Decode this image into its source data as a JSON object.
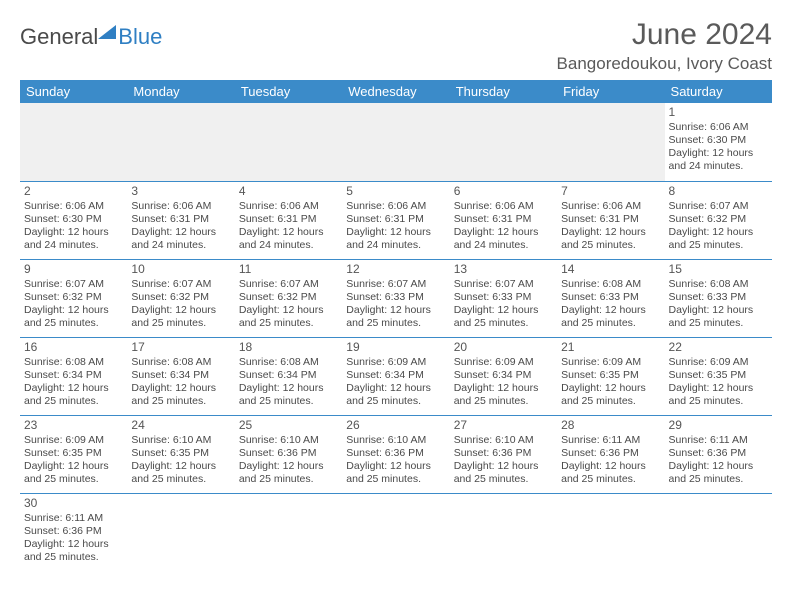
{
  "logo": {
    "part1": "General",
    "part2": "Blue"
  },
  "title": "June 2024",
  "location": "Bangoredoukou, Ivory Coast",
  "weekdays": [
    "Sunday",
    "Monday",
    "Tuesday",
    "Wednesday",
    "Thursday",
    "Friday",
    "Saturday"
  ],
  "colors": {
    "header_bg": "#3b8bc9",
    "header_text": "#ffffff",
    "accent": "#2f7fc3"
  },
  "weeks": [
    [
      null,
      null,
      null,
      null,
      null,
      null,
      {
        "d": "1",
        "sr": "6:06 AM",
        "ss": "6:30 PM",
        "dl": "12 hours and 24 minutes."
      }
    ],
    [
      {
        "d": "2",
        "sr": "6:06 AM",
        "ss": "6:30 PM",
        "dl": "12 hours and 24 minutes."
      },
      {
        "d": "3",
        "sr": "6:06 AM",
        "ss": "6:31 PM",
        "dl": "12 hours and 24 minutes."
      },
      {
        "d": "4",
        "sr": "6:06 AM",
        "ss": "6:31 PM",
        "dl": "12 hours and 24 minutes."
      },
      {
        "d": "5",
        "sr": "6:06 AM",
        "ss": "6:31 PM",
        "dl": "12 hours and 24 minutes."
      },
      {
        "d": "6",
        "sr": "6:06 AM",
        "ss": "6:31 PM",
        "dl": "12 hours and 24 minutes."
      },
      {
        "d": "7",
        "sr": "6:06 AM",
        "ss": "6:31 PM",
        "dl": "12 hours and 25 minutes."
      },
      {
        "d": "8",
        "sr": "6:07 AM",
        "ss": "6:32 PM",
        "dl": "12 hours and 25 minutes."
      }
    ],
    [
      {
        "d": "9",
        "sr": "6:07 AM",
        "ss": "6:32 PM",
        "dl": "12 hours and 25 minutes."
      },
      {
        "d": "10",
        "sr": "6:07 AM",
        "ss": "6:32 PM",
        "dl": "12 hours and 25 minutes."
      },
      {
        "d": "11",
        "sr": "6:07 AM",
        "ss": "6:32 PM",
        "dl": "12 hours and 25 minutes."
      },
      {
        "d": "12",
        "sr": "6:07 AM",
        "ss": "6:33 PM",
        "dl": "12 hours and 25 minutes."
      },
      {
        "d": "13",
        "sr": "6:07 AM",
        "ss": "6:33 PM",
        "dl": "12 hours and 25 minutes."
      },
      {
        "d": "14",
        "sr": "6:08 AM",
        "ss": "6:33 PM",
        "dl": "12 hours and 25 minutes."
      },
      {
        "d": "15",
        "sr": "6:08 AM",
        "ss": "6:33 PM",
        "dl": "12 hours and 25 minutes."
      }
    ],
    [
      {
        "d": "16",
        "sr": "6:08 AM",
        "ss": "6:34 PM",
        "dl": "12 hours and 25 minutes."
      },
      {
        "d": "17",
        "sr": "6:08 AM",
        "ss": "6:34 PM",
        "dl": "12 hours and 25 minutes."
      },
      {
        "d": "18",
        "sr": "6:08 AM",
        "ss": "6:34 PM",
        "dl": "12 hours and 25 minutes."
      },
      {
        "d": "19",
        "sr": "6:09 AM",
        "ss": "6:34 PM",
        "dl": "12 hours and 25 minutes."
      },
      {
        "d": "20",
        "sr": "6:09 AM",
        "ss": "6:34 PM",
        "dl": "12 hours and 25 minutes."
      },
      {
        "d": "21",
        "sr": "6:09 AM",
        "ss": "6:35 PM",
        "dl": "12 hours and 25 minutes."
      },
      {
        "d": "22",
        "sr": "6:09 AM",
        "ss": "6:35 PM",
        "dl": "12 hours and 25 minutes."
      }
    ],
    [
      {
        "d": "23",
        "sr": "6:09 AM",
        "ss": "6:35 PM",
        "dl": "12 hours and 25 minutes."
      },
      {
        "d": "24",
        "sr": "6:10 AM",
        "ss": "6:35 PM",
        "dl": "12 hours and 25 minutes."
      },
      {
        "d": "25",
        "sr": "6:10 AM",
        "ss": "6:36 PM",
        "dl": "12 hours and 25 minutes."
      },
      {
        "d": "26",
        "sr": "6:10 AM",
        "ss": "6:36 PM",
        "dl": "12 hours and 25 minutes."
      },
      {
        "d": "27",
        "sr": "6:10 AM",
        "ss": "6:36 PM",
        "dl": "12 hours and 25 minutes."
      },
      {
        "d": "28",
        "sr": "6:11 AM",
        "ss": "6:36 PM",
        "dl": "12 hours and 25 minutes."
      },
      {
        "d": "29",
        "sr": "6:11 AM",
        "ss": "6:36 PM",
        "dl": "12 hours and 25 minutes."
      }
    ],
    [
      {
        "d": "30",
        "sr": "6:11 AM",
        "ss": "6:36 PM",
        "dl": "12 hours and 25 minutes."
      },
      null,
      null,
      null,
      null,
      null,
      null
    ]
  ],
  "labels": {
    "sunrise": "Sunrise:",
    "sunset": "Sunset:",
    "daylight": "Daylight:"
  }
}
